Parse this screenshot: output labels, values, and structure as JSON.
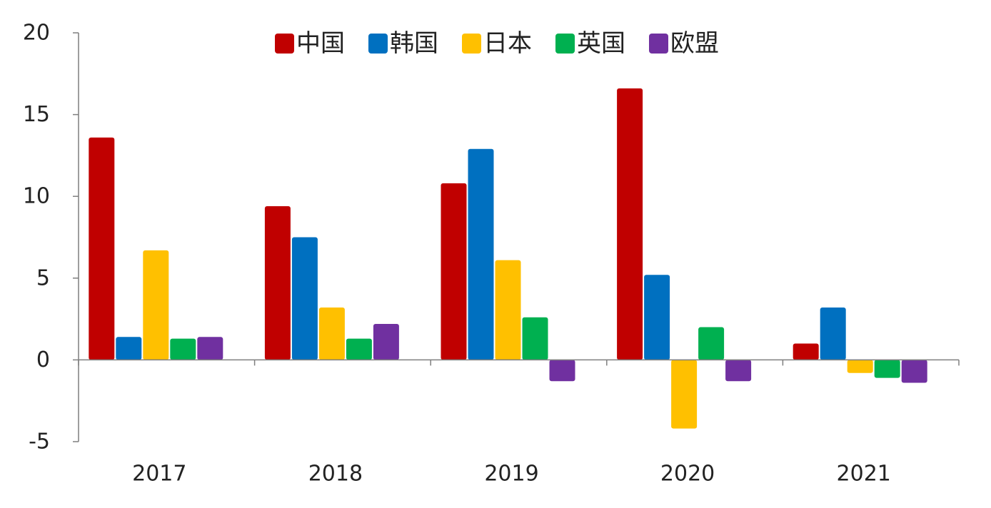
{
  "chart_data": {
    "type": "bar",
    "title": "",
    "xlabel": "",
    "ylabel": "",
    "categories": [
      "2017",
      "2018",
      "2019",
      "2020",
      "2021"
    ],
    "ylim": [
      -5,
      20
    ],
    "yticks": [
      20,
      15,
      10,
      5,
      0,
      -5
    ],
    "grid": false,
    "legend_position": "top-center",
    "series": [
      {
        "name": "中国",
        "color": "#c00000",
        "values": [
          13.6,
          9.4,
          10.8,
          16.6,
          1.0
        ]
      },
      {
        "name": "韩国",
        "color": "#0070c0",
        "values": [
          1.4,
          7.5,
          12.9,
          5.2,
          3.2
        ]
      },
      {
        "name": "日本",
        "color": "#ffc000",
        "values": [
          6.7,
          3.2,
          6.1,
          -4.2,
          -0.8
        ]
      },
      {
        "name": "英国",
        "color": "#00b050",
        "values": [
          1.3,
          1.3,
          2.6,
          2.0,
          -1.1
        ]
      },
      {
        "name": "欧盟",
        "color": "#7030a0",
        "values": [
          1.4,
          2.2,
          -1.3,
          -1.3,
          -1.4
        ]
      }
    ]
  }
}
